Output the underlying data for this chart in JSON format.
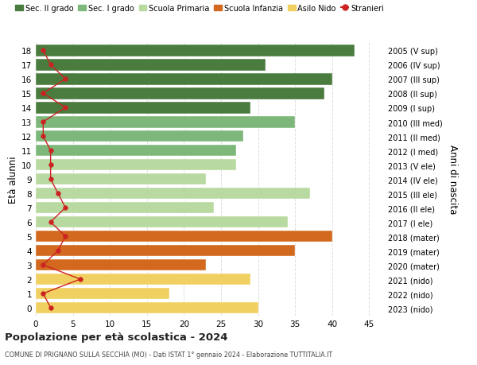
{
  "ages": [
    18,
    17,
    16,
    15,
    14,
    13,
    12,
    11,
    10,
    9,
    8,
    7,
    6,
    5,
    4,
    3,
    2,
    1,
    0
  ],
  "right_labels": [
    "2005 (V sup)",
    "2006 (IV sup)",
    "2007 (III sup)",
    "2008 (II sup)",
    "2009 (I sup)",
    "2010 (III med)",
    "2011 (II med)",
    "2012 (I med)",
    "2013 (V ele)",
    "2014 (IV ele)",
    "2015 (III ele)",
    "2016 (II ele)",
    "2017 (I ele)",
    "2018 (mater)",
    "2019 (mater)",
    "2020 (mater)",
    "2021 (nido)",
    "2022 (nido)",
    "2023 (nido)"
  ],
  "bar_values": [
    43,
    31,
    40,
    39,
    29,
    35,
    28,
    27,
    27,
    23,
    37,
    24,
    34,
    40,
    35,
    23,
    29,
    18,
    30
  ],
  "bar_colors": [
    "#4a7c3f",
    "#4a7c3f",
    "#4a7c3f",
    "#4a7c3f",
    "#4a7c3f",
    "#7db87a",
    "#7db87a",
    "#7db87a",
    "#b8d9a0",
    "#b8d9a0",
    "#b8d9a0",
    "#b8d9a0",
    "#b8d9a0",
    "#d2691e",
    "#d2691e",
    "#d2691e",
    "#f0d060",
    "#f0d060",
    "#f0d060"
  ],
  "stranieri_values": [
    1,
    2,
    4,
    1,
    4,
    1,
    1,
    2,
    2,
    2,
    3,
    4,
    2,
    4,
    3,
    1,
    6,
    1,
    2
  ],
  "legend_items": [
    {
      "label": "Sec. II grado",
      "color": "#4a7c3f",
      "type": "bar"
    },
    {
      "label": "Sec. I grado",
      "color": "#7db87a",
      "type": "bar"
    },
    {
      "label": "Scuola Primaria",
      "color": "#b8d9a0",
      "type": "bar"
    },
    {
      "label": "Scuola Infanzia",
      "color": "#d2691e",
      "type": "bar"
    },
    {
      "label": "Asilo Nido",
      "color": "#f0d060",
      "type": "bar"
    },
    {
      "label": "Stranieri",
      "color": "#cc2222",
      "type": "line"
    }
  ],
  "ylabel_left": "Età alunni",
  "ylabel_right": "Anni di nascita",
  "title": "Popolazione per età scolastica - 2024",
  "subtitle": "COMUNE DI PRIGNANO SULLA SECCHIA (MO) - Dati ISTAT 1° gennaio 2024 - Elaborazione TUTTITALIA.IT",
  "xlim": [
    0,
    47
  ],
  "xticks": [
    0,
    5,
    10,
    15,
    20,
    25,
    30,
    35,
    40,
    45
  ],
  "background_color": "#ffffff",
  "grid_color": "#dddddd",
  "bar_height": 0.82,
  "stranieri_line_color": "#cc2222",
  "stranieri_marker": "o",
  "stranieri_markersize": 4
}
